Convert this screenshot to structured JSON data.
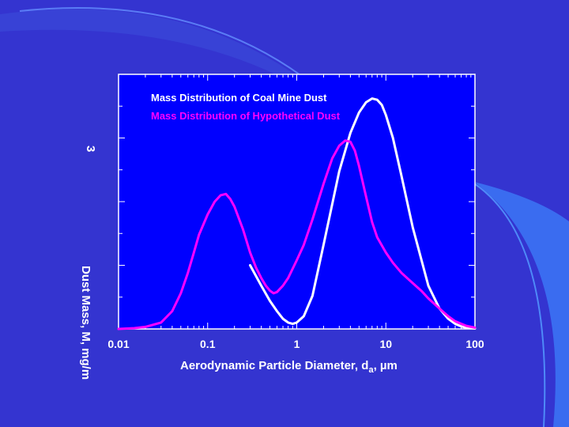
{
  "slide": {
    "background_color": "#3434d0",
    "accent_color": "#3a6cf0",
    "plot_background_color": "#0000ff"
  },
  "chart_data": {
    "type": "line",
    "title": "",
    "xlabel": "Aerodynamic Particle Diameter, d",
    "xlabel_subscript": "a",
    "xlabel_unit": ", µm",
    "ylabel": "Dust Mass, M, mg/m",
    "ylabel_superscript": "3",
    "xscale": "log",
    "xlim": [
      0.01,
      100
    ],
    "ylim": [
      0,
      1
    ],
    "xticks": [
      0.01,
      0.1,
      1,
      10,
      100
    ],
    "xtick_labels": [
      "0.01",
      "0.1",
      "1",
      "10",
      "100"
    ],
    "legend_position": "top-left",
    "series": [
      {
        "name": "Mass Distribution of Coal Mine Dust",
        "color": "#ffffff",
        "x": [
          0.3,
          0.4,
          0.5,
          0.6,
          0.7,
          0.8,
          0.9,
          1.0,
          1.2,
          1.5,
          2,
          3,
          4,
          5,
          6,
          7,
          8,
          9,
          10,
          12,
          15,
          20,
          30,
          40,
          50,
          60,
          70,
          80,
          100
        ],
        "y": [
          0.25,
          0.17,
          0.11,
          0.07,
          0.04,
          0.025,
          0.02,
          0.025,
          0.05,
          0.13,
          0.33,
          0.62,
          0.77,
          0.85,
          0.89,
          0.905,
          0.9,
          0.88,
          0.84,
          0.75,
          0.6,
          0.4,
          0.17,
          0.08,
          0.04,
          0.02,
          0.01,
          0.005,
          0.002
        ]
      },
      {
        "name": "Mass Distribution of Hypothetical Dust",
        "color": "#ff00ff",
        "x": [
          0.01,
          0.015,
          0.02,
          0.03,
          0.04,
          0.05,
          0.06,
          0.07,
          0.08,
          0.1,
          0.12,
          0.14,
          0.16,
          0.18,
          0.2,
          0.25,
          0.3,
          0.35,
          0.4,
          0.45,
          0.5,
          0.55,
          0.6,
          0.7,
          0.8,
          1,
          1.2,
          1.5,
          2,
          2.5,
          3,
          3.5,
          4,
          4.5,
          5,
          6,
          7,
          8,
          10,
          12,
          15,
          20,
          25,
          30,
          40,
          50,
          60,
          80,
          100
        ],
        "y": [
          0.0,
          0.003,
          0.008,
          0.025,
          0.07,
          0.14,
          0.22,
          0.3,
          0.37,
          0.45,
          0.5,
          0.525,
          0.53,
          0.51,
          0.48,
          0.39,
          0.3,
          0.24,
          0.2,
          0.17,
          0.15,
          0.14,
          0.145,
          0.17,
          0.2,
          0.27,
          0.33,
          0.43,
          0.57,
          0.67,
          0.72,
          0.74,
          0.735,
          0.7,
          0.64,
          0.52,
          0.42,
          0.36,
          0.3,
          0.26,
          0.22,
          0.18,
          0.15,
          0.12,
          0.08,
          0.05,
          0.03,
          0.012,
          0.005
        ]
      }
    ]
  }
}
